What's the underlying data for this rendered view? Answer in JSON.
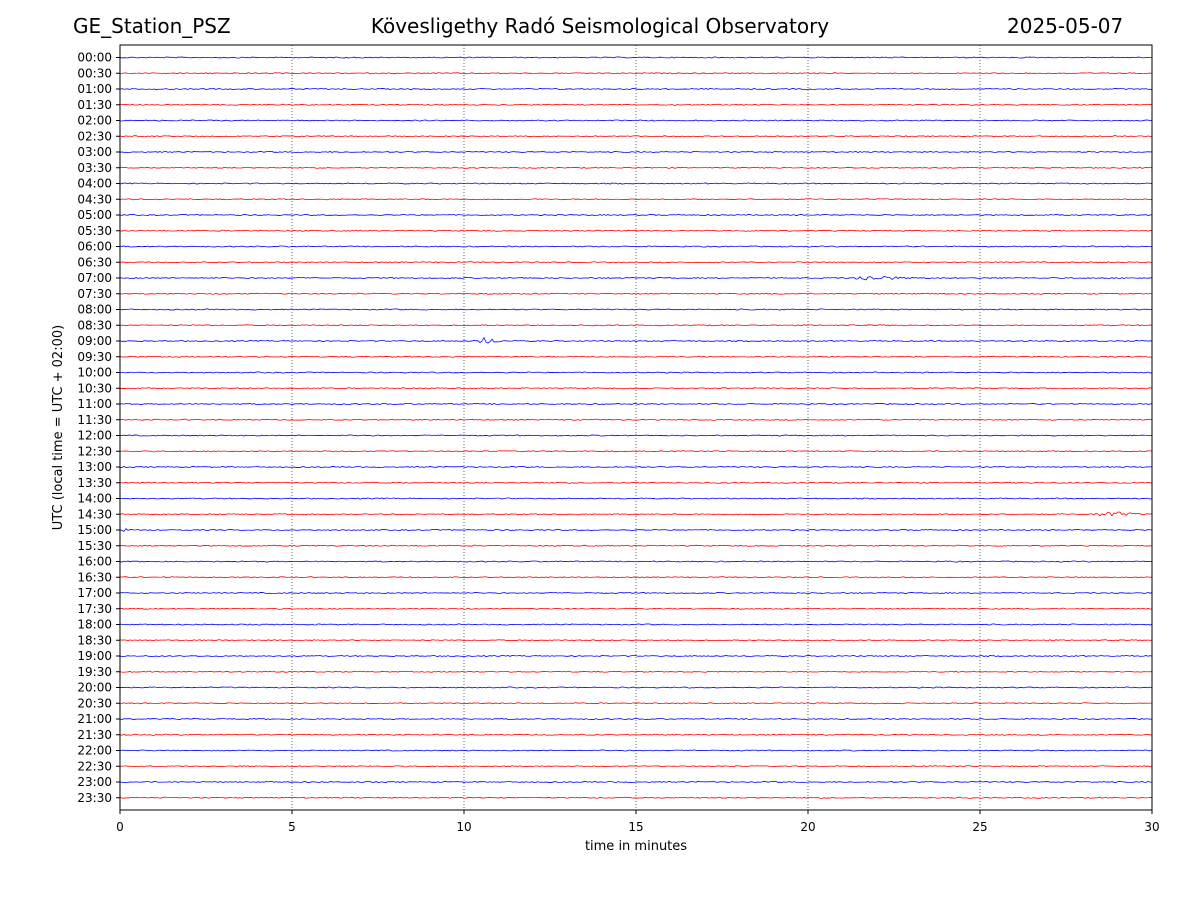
{
  "header": {
    "station": "GE_Station_PSZ",
    "title": "Kövesligethy Radó Seismological Observatory",
    "date": "2025-05-07"
  },
  "chart_data": {
    "type": "line",
    "title": "Kövesligethy Radó Seismological Observatory",
    "xlabel": "time in minutes",
    "ylabel": "UTC (local time = UTC + 02:00)",
    "xlim": [
      0,
      30
    ],
    "x_ticks": [
      0,
      5,
      10,
      15,
      20,
      25,
      30
    ],
    "grid": "vertical dotted lines at x ticks",
    "row_labels": [
      "00:00",
      "00:30",
      "01:00",
      "01:30",
      "02:00",
      "02:30",
      "03:00",
      "03:30",
      "04:00",
      "04:30",
      "05:00",
      "05:30",
      "06:00",
      "06:30",
      "07:00",
      "07:30",
      "08:00",
      "08:30",
      "09:00",
      "09:30",
      "10:00",
      "10:30",
      "11:00",
      "11:30",
      "12:00",
      "12:30",
      "13:00",
      "13:30",
      "14:00",
      "14:30",
      "15:00",
      "15:30",
      "16:00",
      "16:30",
      "17:00",
      "17:30",
      "18:00",
      "18:30",
      "19:00",
      "19:30",
      "20:00",
      "20:30",
      "21:00",
      "21:30",
      "22:00",
      "22:30",
      "23:00",
      "23:30"
    ],
    "series_colors": [
      "#0000ff",
      "#ff0000"
    ],
    "events": [
      {
        "row": "07:00",
        "start_min": 21.3,
        "end_min": 23.2,
        "amplitude": 5
      },
      {
        "row": "09:00",
        "start_min": 10.3,
        "end_min": 11.2,
        "amplitude": 7
      },
      {
        "row": "14:30",
        "start_min": 28.3,
        "end_min": 30,
        "amplitude": 5
      },
      {
        "row": "15:00",
        "start_min": 0,
        "end_min": 0.5,
        "amplitude": 3
      }
    ]
  }
}
